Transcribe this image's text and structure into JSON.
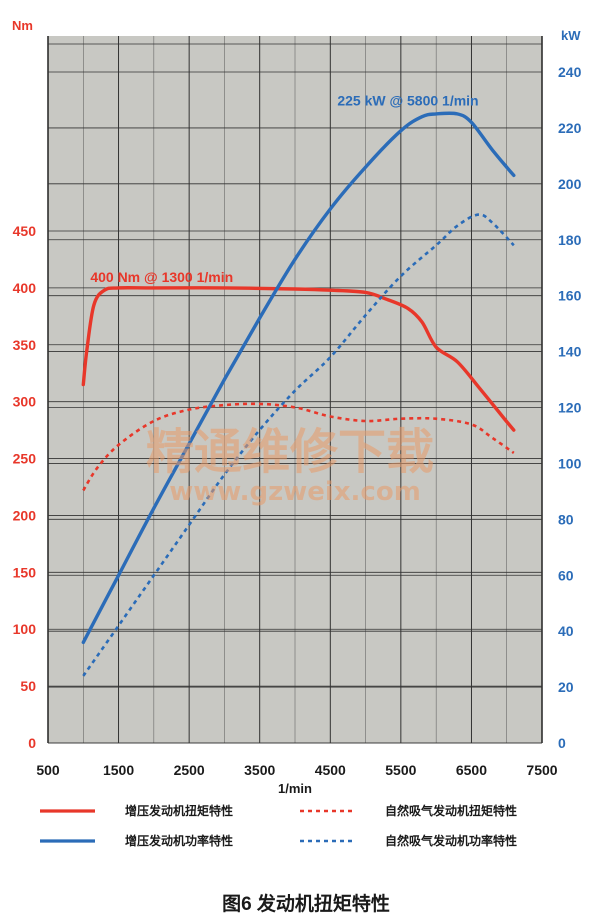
{
  "chart_data": {
    "type": "line",
    "caption": "图6 发动机扭矩特性",
    "xlabel": "1/min",
    "ylabel_left": "Nm",
    "ylabel_right": "kW",
    "xlim": [
      500,
      7500
    ],
    "ylim_left": [
      0,
      450
    ],
    "ylim_right": [
      0,
      240
    ],
    "x_ticks": [
      "500",
      "1500",
      "2500",
      "3500",
      "4500",
      "5500",
      "6500",
      "7500"
    ],
    "x_tick_values": [
      500,
      1500,
      2500,
      3500,
      4500,
      5500,
      6500,
      7500
    ],
    "y_ticks_left": [
      "0",
      "50",
      "100",
      "150",
      "200",
      "250",
      "300",
      "350",
      "400",
      "450"
    ],
    "y_tick_values_left": [
      0,
      50,
      100,
      150,
      200,
      250,
      300,
      350,
      400,
      450
    ],
    "y_ticks_right": [
      "0",
      "20",
      "40",
      "60",
      "80",
      "100",
      "120",
      "140",
      "160",
      "180",
      "200",
      "220",
      "240"
    ],
    "y_tick_values_right": [
      0,
      20,
      40,
      60,
      80,
      100,
      120,
      140,
      160,
      180,
      200,
      220,
      240
    ],
    "grid": true,
    "background": "#c8c8c3",
    "series": [
      {
        "name": "增压发动机扭矩特性",
        "axis": "left",
        "color": "#e8372a",
        "dash": false,
        "x": [
          1000,
          1050,
          1150,
          1300,
          1500,
          2000,
          3000,
          4000,
          4500,
          5000,
          5300,
          5600,
          5800,
          6000,
          6300,
          6600,
          6900,
          7100
        ],
        "y": [
          315,
          345,
          385,
          398,
          400,
          400,
          400,
          399,
          398,
          396,
          390,
          382,
          370,
          348,
          335,
          313,
          290,
          275
        ]
      },
      {
        "name": "自然吸气发动机扭矩特性",
        "axis": "left",
        "color": "#e8372a",
        "dash": true,
        "x": [
          1000,
          1200,
          1500,
          2000,
          2500,
          3000,
          3500,
          4000,
          4500,
          5000,
          5500,
          6000,
          6500,
          6800,
          7100
        ],
        "y": [
          222,
          242,
          262,
          283,
          293,
          297,
          298,
          295,
          287,
          283,
          285,
          285,
          280,
          268,
          255
        ]
      },
      {
        "name": "增压发动机功率特性",
        "axis": "right",
        "color": "#2b6cb8",
        "dash": false,
        "x": [
          1000,
          1500,
          2000,
          2500,
          3000,
          3500,
          4000,
          4500,
          5000,
          5500,
          5800,
          6000,
          6300,
          6500,
          6800,
          7100
        ],
        "y": [
          36,
          60,
          84,
          107,
          130,
          152,
          173,
          191,
          206,
          219,
          224,
          225,
          225,
          222,
          212,
          203
        ]
      },
      {
        "name": "自然吸气发动机功率特性",
        "axis": "right",
        "color": "#2b6cb8",
        "dash": true,
        "x": [
          1000,
          1500,
          2000,
          2500,
          3000,
          3500,
          4000,
          4500,
          5000,
          5500,
          6000,
          6300,
          6600,
          6800,
          7100
        ],
        "y": [
          24,
          42,
          60,
          78,
          96,
          112,
          126,
          138,
          153,
          167,
          178,
          185,
          189,
          186,
          178
        ]
      }
    ],
    "annotations": [
      {
        "text": "400 Nm @ 1300 1/min",
        "x": 1100,
        "y": 405,
        "axis": "left",
        "color": "#e8372a"
      },
      {
        "text": "225 kW @ 5800 1/min",
        "x": 4600,
        "y": 228,
        "axis": "right",
        "color": "#2b6cb8"
      }
    ],
    "watermark": {
      "line1": "精通维修下载",
      "line2": "www.gzweix.com",
      "color": "#e89b6a"
    }
  }
}
